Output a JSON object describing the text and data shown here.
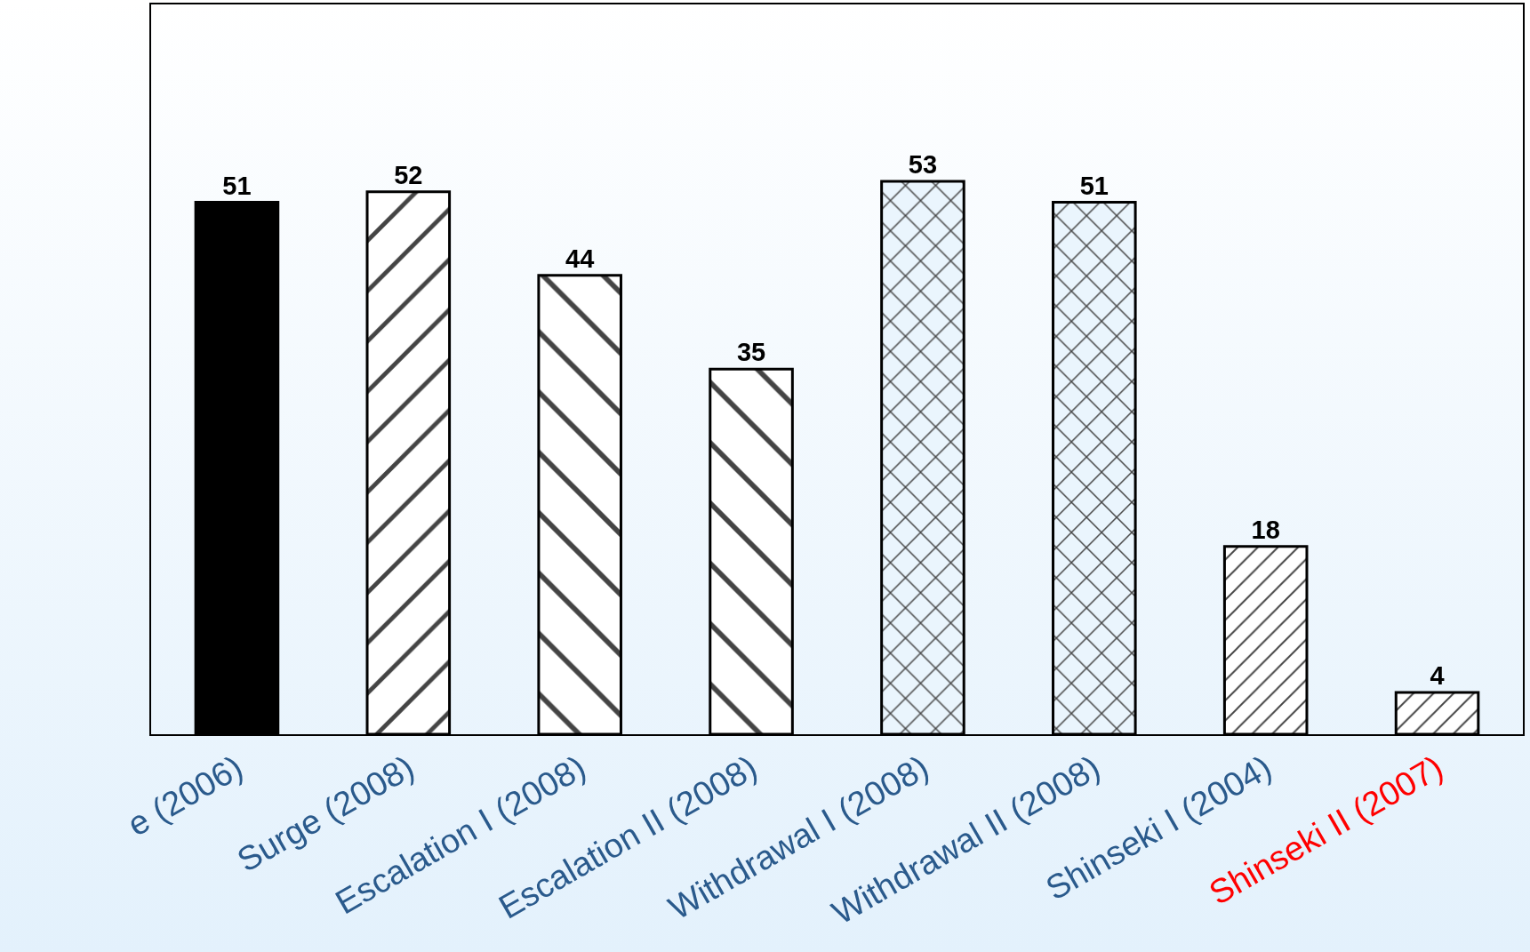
{
  "chart_data": {
    "type": "bar",
    "categories": [
      "e (2006)",
      "Surge (2008)",
      "Escalation I (2008)",
      "Escalation II (2008)",
      "Withdrawal I (2008)",
      "Withdrawal II (2008)",
      "Shinseki I (2004)",
      "Shinseki II (2007)"
    ],
    "values": [
      51,
      52,
      44,
      35,
      53,
      51,
      18,
      4
    ],
    "colors": [
      "#000000",
      "#000000",
      "#000000",
      "#000000",
      "#000000",
      "#000000",
      "#000000",
      "#000000"
    ],
    "data_labels": true,
    "grid": false,
    "legend": false,
    "tick_labels": "x"
  }
}
